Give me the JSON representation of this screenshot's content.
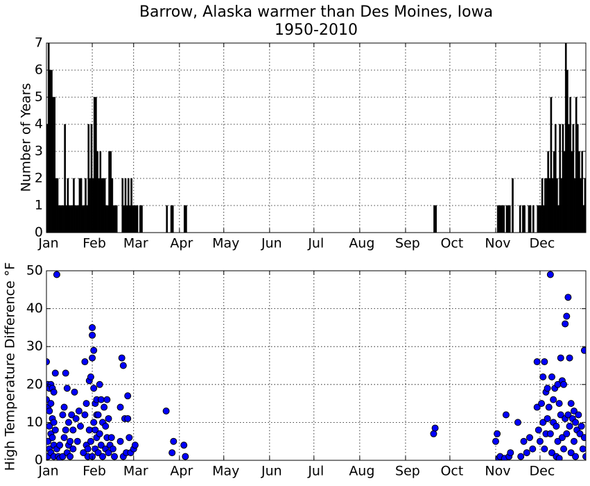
{
  "chart_data": [
    {
      "type": "bar",
      "title": "Barrow, Alaska warmer than Des Moines, Iowa",
      "subtitle": "1950-2010",
      "y_label": "Number of Years",
      "color": "#000000",
      "grid": true,
      "xlim": [
        1,
        366
      ],
      "ylim": [
        0,
        7
      ],
      "yticks": [
        0,
        1,
        2,
        3,
        4,
        5,
        6,
        7
      ],
      "xticks": [
        {
          "value": 1,
          "label": "Jan"
        },
        {
          "value": 32,
          "label": "Feb"
        },
        {
          "value": 60,
          "label": "Mar"
        },
        {
          "value": 91,
          "label": "Apr"
        },
        {
          "value": 121,
          "label": "May"
        },
        {
          "value": 152,
          "label": "Jun"
        },
        {
          "value": 182,
          "label": "Jul"
        },
        {
          "value": 213,
          "label": "Aug"
        },
        {
          "value": 244,
          "label": "Sep"
        },
        {
          "value": 274,
          "label": "Oct"
        },
        {
          "value": 305,
          "label": "Nov"
        },
        {
          "value": 335,
          "label": "Dec"
        }
      ],
      "x": [
        1,
        2,
        3,
        4,
        5,
        6,
        7,
        8,
        9,
        10,
        11,
        12,
        13,
        14,
        15,
        16,
        17,
        18,
        19,
        20,
        21,
        22,
        23,
        24,
        25,
        26,
        27,
        28,
        29,
        30,
        31,
        32,
        33,
        34,
        35,
        36,
        37,
        38,
        39,
        40,
        41,
        42,
        43,
        44,
        45,
        46,
        47,
        48,
        52,
        53,
        54,
        55,
        56,
        57,
        58,
        59,
        60,
        61,
        62,
        64,
        65,
        82,
        85,
        86,
        94,
        95,
        263,
        264,
        306,
        307,
        308,
        309,
        310,
        312,
        313,
        314,
        316,
        321,
        323,
        324,
        327,
        328,
        330,
        333,
        334,
        335,
        336,
        337,
        338,
        339,
        340,
        341,
        342,
        343,
        344,
        345,
        346,
        347,
        348,
        349,
        350,
        351,
        352,
        353,
        354,
        355,
        356,
        357,
        358,
        359,
        360,
        361,
        362,
        363,
        364,
        365,
        366
      ],
      "values": [
        4,
        7,
        6,
        6,
        5,
        5,
        2,
        2,
        1,
        1,
        1,
        1,
        4,
        1,
        2,
        1,
        1,
        1,
        2,
        1,
        1,
        1,
        2,
        2,
        1,
        1,
        2,
        1,
        4,
        2,
        4,
        2,
        5,
        5,
        3,
        2,
        3,
        2,
        2,
        2,
        1,
        1,
        3,
        3,
        2,
        1,
        1,
        1,
        2,
        1,
        2,
        1,
        2,
        1,
        2,
        1,
        1,
        1,
        1,
        1,
        1,
        1,
        1,
        1,
        1,
        1,
        1,
        1,
        1,
        1,
        1,
        1,
        1,
        1,
        1,
        1,
        2,
        1,
        1,
        1,
        1,
        1,
        1,
        1,
        1,
        1,
        2,
        1,
        2,
        2,
        3,
        2,
        5,
        2,
        3,
        4,
        2,
        1,
        4,
        2,
        4,
        3,
        7,
        6,
        4,
        5,
        3,
        4,
        2,
        5,
        4,
        3,
        2,
        3,
        1,
        2,
        1
      ]
    },
    {
      "type": "scatter",
      "y_label": "High Temperature Difference °F",
      "color": "#0000ff",
      "grid": true,
      "xlim": [
        1,
        366
      ],
      "ylim": [
        0,
        50
      ],
      "yticks": [
        0,
        10,
        20,
        30,
        40,
        50
      ],
      "xticks": [
        {
          "value": 1,
          "label": "Jan"
        },
        {
          "value": 32,
          "label": "Feb"
        },
        {
          "value": 60,
          "label": "Mar"
        },
        {
          "value": 91,
          "label": "Apr"
        },
        {
          "value": 121,
          "label": "May"
        },
        {
          "value": 152,
          "label": "Jun"
        },
        {
          "value": 182,
          "label": "Jul"
        },
        {
          "value": 213,
          "label": "Aug"
        },
        {
          "value": 244,
          "label": "Sep"
        },
        {
          "value": 274,
          "label": "Oct"
        },
        {
          "value": 305,
          "label": "Nov"
        },
        {
          "value": 335,
          "label": "Dec"
        }
      ],
      "x": [
        1,
        1,
        2,
        2,
        2,
        2,
        3,
        3,
        3,
        3,
        4,
        4,
        4,
        4,
        5,
        5,
        5,
        6,
        6,
        6,
        6,
        7,
        7,
        8,
        8,
        9,
        10,
        10,
        12,
        12,
        13,
        13,
        14,
        14,
        15,
        15,
        16,
        16,
        17,
        17,
        18,
        19,
        19,
        20,
        21,
        22,
        23,
        24,
        26,
        27,
        27,
        28,
        28,
        29,
        29,
        30,
        30,
        31,
        31,
        32,
        32,
        32,
        32,
        33,
        33,
        33,
        34,
        34,
        34,
        35,
        35,
        35,
        36,
        36,
        37,
        37,
        38,
        38,
        39,
        39,
        40,
        41,
        41,
        42,
        42,
        43,
        43,
        44,
        45,
        46,
        47,
        51,
        51,
        52,
        53,
        53,
        54,
        55,
        56,
        56,
        57,
        58,
        60,
        61,
        82,
        86,
        87,
        94,
        95,
        263,
        264,
        305,
        306,
        307,
        308,
        311,
        312,
        314,
        315,
        320,
        322,
        324,
        326,
        328,
        330,
        333,
        333,
        334,
        335,
        336,
        337,
        337,
        338,
        338,
        339,
        339,
        340,
        340,
        341,
        342,
        342,
        343,
        343,
        344,
        344,
        345,
        346,
        346,
        347,
        347,
        348,
        348,
        349,
        349,
        350,
        350,
        351,
        351,
        352,
        352,
        353,
        353,
        354,
        354,
        355,
        355,
        356,
        356,
        357,
        358,
        358,
        359,
        359,
        360,
        361,
        362,
        363,
        364,
        365,
        365,
        366
      ],
      "values": [
        26,
        16,
        20,
        14,
        5,
        1,
        19,
        13,
        9,
        3,
        20,
        15,
        7,
        2,
        19,
        11,
        6,
        18,
        10,
        4,
        1,
        23,
        8,
        49,
        3,
        1,
        4,
        0.5,
        12,
        1,
        14,
        6,
        23,
        8,
        19,
        2,
        10,
        4,
        5,
        1,
        12,
        8,
        3,
        18,
        11,
        5,
        13,
        9,
        2,
        26,
        12,
        15,
        4,
        3,
        1,
        21,
        8,
        22,
        5,
        27,
        35,
        33,
        1,
        29,
        19,
        10,
        15,
        8,
        3,
        16,
        12,
        6,
        12,
        2,
        20,
        7,
        16,
        4,
        10,
        1,
        14,
        9,
        3,
        16,
        6,
        11,
        2,
        4,
        6,
        3,
        1,
        14,
        5,
        27,
        25,
        1,
        11,
        2,
        17,
        11,
        6,
        2,
        3,
        4,
        13,
        2,
        5,
        4,
        1,
        7,
        8.5,
        5,
        7,
        0.5,
        1,
        0.5,
        12,
        1,
        2,
        10,
        1,
        5,
        2,
        6,
        3,
        26,
        14,
        8,
        5,
        15,
        22,
        10,
        26,
        3,
        18,
        7,
        19,
        11,
        14,
        49,
        7,
        22,
        2,
        16,
        10,
        19,
        9,
        1,
        20,
        5,
        15,
        0.5,
        27,
        12,
        21,
        6,
        20,
        3,
        36,
        11,
        38,
        7,
        43,
        12,
        27,
        9,
        15,
        2,
        11,
        13,
        5,
        10,
        1,
        8,
        12,
        7,
        9,
        3,
        29,
        6,
        1
      ]
    }
  ]
}
